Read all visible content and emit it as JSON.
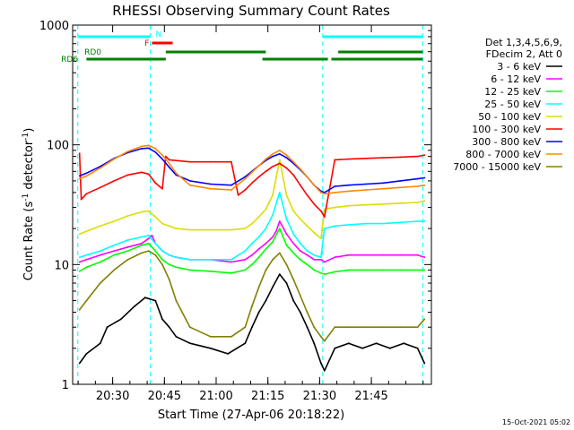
{
  "chart_data": {
    "type": "line",
    "title": "RHESSI Observing Summary Count Rates",
    "xlabel": "Start Time (27-Apr-06 20:18:22)",
    "ylabel_main": "Count Rate (s",
    "ylabel_sup1": "-1",
    "ylabel_mid": " detector",
    "ylabel_sup2": "-1",
    "ylabel_end": ")",
    "timestamp": "15-Oct-2021 05:02",
    "y_scale": "log",
    "x_unit": "minutes after 20:18:22",
    "xlim": [
      0,
      104
    ],
    "ylim": [
      1,
      1000
    ],
    "x_ticks": [
      {
        "value": 11.6,
        "label": "20:30"
      },
      {
        "value": 26.6,
        "label": "20:45"
      },
      {
        "value": 41.6,
        "label": "21:00"
      },
      {
        "value": 56.6,
        "label": "21:15"
      },
      {
        "value": 71.6,
        "label": "21:30"
      },
      {
        "value": 86.6,
        "label": "21:45"
      }
    ],
    "y_ticks": [
      {
        "value": 1,
        "label": "1"
      },
      {
        "value": 10,
        "label": "10"
      },
      {
        "value": 100,
        "label": "100"
      },
      {
        "value": 1000,
        "label": "1000"
      }
    ],
    "legend": {
      "position": "right",
      "header": [
        "Det 1,3,4,5,6,9,",
        "FDecim 2, Att 0"
      ],
      "entries": [
        {
          "label": "3 - 6 keV",
          "color": "#000000"
        },
        {
          "label": "6 - 12 keV",
          "color": "#ff00ff"
        },
        {
          "label": "12 - 25 keV",
          "color": "#00ff00"
        },
        {
          "label": "25 - 50 keV",
          "color": "#00ffff"
        },
        {
          "label": "50 - 100 keV",
          "color": "#dddd00"
        },
        {
          "label": "100 - 300 keV",
          "color": "#ff0000"
        },
        {
          "label": "300 - 800 keV",
          "color": "#0000ff"
        },
        {
          "label": "800 - 7000 keV",
          "color": "#ff8800"
        },
        {
          "label": "7000 - 15000 keV",
          "color": "#808000"
        }
      ]
    },
    "night_boundaries": [
      {
        "x": 1.5,
        "color": "#00ffff"
      },
      {
        "x": 22.5,
        "color": "#00ffff"
      },
      {
        "x": 72.5,
        "color": "#00ffff"
      },
      {
        "x": 101.5,
        "color": "#00ffff"
      }
    ],
    "flag_bars": [
      {
        "label": "N",
        "color": "#00ffff",
        "segments": [
          [
            1.5,
            22.5
          ],
          [
            72.5,
            101.5
          ]
        ]
      },
      {
        "label": "F",
        "color": "#ff0000",
        "segments": [
          [
            23,
            29
          ]
        ]
      },
      {
        "label": "RD0",
        "color": "#008000",
        "segments": [
          [
            27,
            56
          ],
          [
            77,
            101.5
          ]
        ]
      },
      {
        "label": "RD6",
        "color": "#008000",
        "segments": [
          [
            4,
            27
          ],
          [
            55,
            74
          ],
          [
            75,
            101.5
          ]
        ]
      }
    ],
    "series": [
      {
        "name": "3 - 6 keV",
        "color": "#000000",
        "x": [
          2,
          4,
          8,
          10,
          14,
          18,
          21,
          24,
          26,
          28,
          30,
          34,
          40,
          45,
          50,
          52,
          54,
          56,
          58,
          60,
          62,
          64,
          66,
          68,
          70,
          72,
          73,
          76,
          80,
          84,
          88,
          92,
          96,
          100,
          102
        ],
        "y": [
          1.5,
          1.8,
          2.2,
          3.0,
          3.5,
          4.5,
          5.3,
          5.0,
          3.5,
          3.0,
          2.5,
          2.2,
          2.0,
          1.8,
          2.2,
          3.0,
          4.0,
          5.0,
          6.5,
          8.3,
          7.0,
          5.0,
          4.0,
          3.0,
          2.2,
          1.5,
          1.3,
          2.0,
          2.2,
          2.0,
          2.2,
          2.0,
          2.2,
          2.0,
          1.5
        ]
      },
      {
        "name": "6 - 12 keV",
        "color": "#ff00ff",
        "x": [
          2,
          4,
          8,
          12,
          16,
          20,
          22,
          23,
          24,
          26,
          28,
          30,
          34,
          40,
          46,
          50,
          52,
          54,
          56,
          58,
          59,
          60,
          62,
          64,
          66,
          68,
          70,
          72,
          73,
          76,
          80,
          85,
          90,
          95,
          100,
          102
        ],
        "y": [
          10.5,
          11,
          12,
          13,
          14,
          15,
          16.5,
          17.5,
          15,
          13,
          12,
          11.5,
          11,
          11,
          10.5,
          11,
          12,
          13.5,
          15,
          17,
          19,
          23,
          18,
          15,
          13,
          12,
          11,
          11,
          10.5,
          11.5,
          12,
          12,
          12,
          12,
          12,
          11.5
        ]
      },
      {
        "name": "12 - 25 keV",
        "color": "#00ff00",
        "x": [
          2,
          4,
          8,
          12,
          16,
          20,
          22,
          24,
          26,
          28,
          30,
          34,
          40,
          46,
          50,
          52,
          54,
          56,
          58,
          60,
          62,
          64,
          66,
          68,
          70,
          72,
          73,
          76,
          80,
          85,
          90,
          95,
          100,
          102
        ],
        "y": [
          8.8,
          9.5,
          10.5,
          12,
          13,
          14.5,
          15,
          13,
          11,
          10,
          9.5,
          9,
          8.8,
          8.5,
          9,
          10,
          11.5,
          13.5,
          15.5,
          20,
          14.5,
          12.5,
          11,
          10,
          9,
          8.5,
          8.3,
          8.7,
          9,
          9,
          9,
          9,
          9,
          9
        ]
      },
      {
        "name": "25 - 50 keV",
        "color": "#00ffff",
        "x": [
          2,
          4,
          8,
          12,
          16,
          20,
          22,
          24,
          26,
          28,
          30,
          34,
          40,
          46,
          50,
          52,
          54,
          56,
          58,
          60,
          62,
          64,
          66,
          68,
          70,
          72,
          73,
          76,
          80,
          85,
          90,
          95,
          100,
          102
        ],
        "y": [
          11.5,
          12,
          13,
          14.5,
          16,
          17,
          17.5,
          15,
          13,
          12,
          11.5,
          11,
          11,
          11,
          13,
          15,
          17,
          20,
          26,
          40,
          24,
          18,
          15,
          13,
          12,
          11.5,
          20,
          21,
          21.5,
          22,
          22,
          22.5,
          23,
          23
        ]
      },
      {
        "name": "50 - 100 keV",
        "color": "#dddd00",
        "x": [
          2,
          4,
          8,
          12,
          16,
          20,
          22,
          24,
          26,
          28,
          30,
          34,
          40,
          46,
          50,
          52,
          54,
          56,
          58,
          60,
          62,
          64,
          66,
          68,
          70,
          72,
          73,
          76,
          80,
          85,
          90,
          95,
          100,
          102
        ],
        "y": [
          18,
          19,
          21,
          23,
          25.5,
          27.5,
          28,
          25,
          22,
          21,
          20,
          19.5,
          19.5,
          19.5,
          20,
          22,
          25,
          29,
          38,
          75,
          38,
          28,
          24,
          21,
          18.5,
          16.5,
          29,
          30,
          31,
          31.5,
          32,
          32.5,
          33,
          34
        ]
      },
      {
        "name": "100 - 300 keV",
        "color": "#ff0000",
        "x": [
          2,
          2.5,
          4,
          8,
          12,
          16,
          20,
          22,
          24,
          26,
          27,
          28,
          34,
          40,
          46,
          48,
          50,
          52,
          54,
          56,
          58,
          60,
          62,
          64,
          66,
          68,
          70,
          72,
          73,
          76,
          80,
          85,
          90,
          95,
          100,
          102
        ],
        "y": [
          85,
          35,
          39,
          44,
          50,
          56,
          59,
          57,
          48,
          43,
          80,
          75,
          72,
          72,
          72,
          38,
          42,
          48,
          54,
          60,
          66,
          70,
          64,
          56,
          46,
          38,
          32,
          28,
          25,
          75,
          76,
          77,
          78,
          79,
          80,
          82
        ]
      },
      {
        "name": "300 - 800 keV",
        "color": "#0000ff",
        "x": [
          2,
          4,
          8,
          12,
          16,
          20,
          22,
          24,
          26,
          28,
          30,
          34,
          40,
          46,
          50,
          52,
          54,
          56,
          58,
          60,
          62,
          64,
          66,
          68,
          70,
          72,
          73,
          76,
          80,
          85,
          90,
          95,
          100,
          102
        ],
        "y": [
          55,
          58,
          66,
          77,
          86,
          93,
          94,
          87,
          76,
          65,
          56,
          50,
          47,
          46,
          54,
          60,
          67,
          74,
          80,
          84,
          78,
          70,
          62,
          54,
          46,
          41,
          40,
          45,
          46,
          47,
          48,
          50,
          52,
          53
        ]
      },
      {
        "name": "800 - 7000 keV",
        "color": "#ff8800",
        "x": [
          2,
          4,
          8,
          12,
          16,
          20,
          22,
          24,
          26,
          28,
          30,
          34,
          40,
          46,
          50,
          52,
          54,
          56,
          58,
          60,
          62,
          64,
          66,
          68,
          70,
          72,
          73,
          76,
          80,
          85,
          90,
          95,
          100,
          102
        ],
        "y": [
          52,
          55,
          64,
          76,
          88,
          97,
          99,
          93,
          82,
          70,
          58,
          46,
          43,
          42,
          52,
          59,
          67,
          76,
          84,
          90,
          82,
          72,
          63,
          54,
          46,
          40,
          39,
          40,
          41,
          42,
          43,
          44,
          45,
          46
        ]
      },
      {
        "name": "7000 - 15000 keV",
        "color": "#808000",
        "x": [
          2,
          4,
          8,
          12,
          16,
          20,
          22,
          24,
          26,
          28,
          30,
          34,
          40,
          46,
          50,
          52,
          54,
          56,
          58,
          60,
          62,
          64,
          66,
          68,
          70,
          72,
          73,
          76,
          80,
          85,
          90,
          95,
          100,
          102
        ],
        "y": [
          4.2,
          5,
          7,
          9,
          11,
          12.5,
          13,
          12,
          10,
          7.5,
          5,
          3,
          2.5,
          2.5,
          3,
          4.5,
          6.5,
          9,
          11,
          12.5,
          10,
          7.5,
          5.5,
          4,
          3,
          2.5,
          2.3,
          3,
          3,
          3,
          3,
          3,
          3,
          3.5
        ]
      }
    ]
  }
}
